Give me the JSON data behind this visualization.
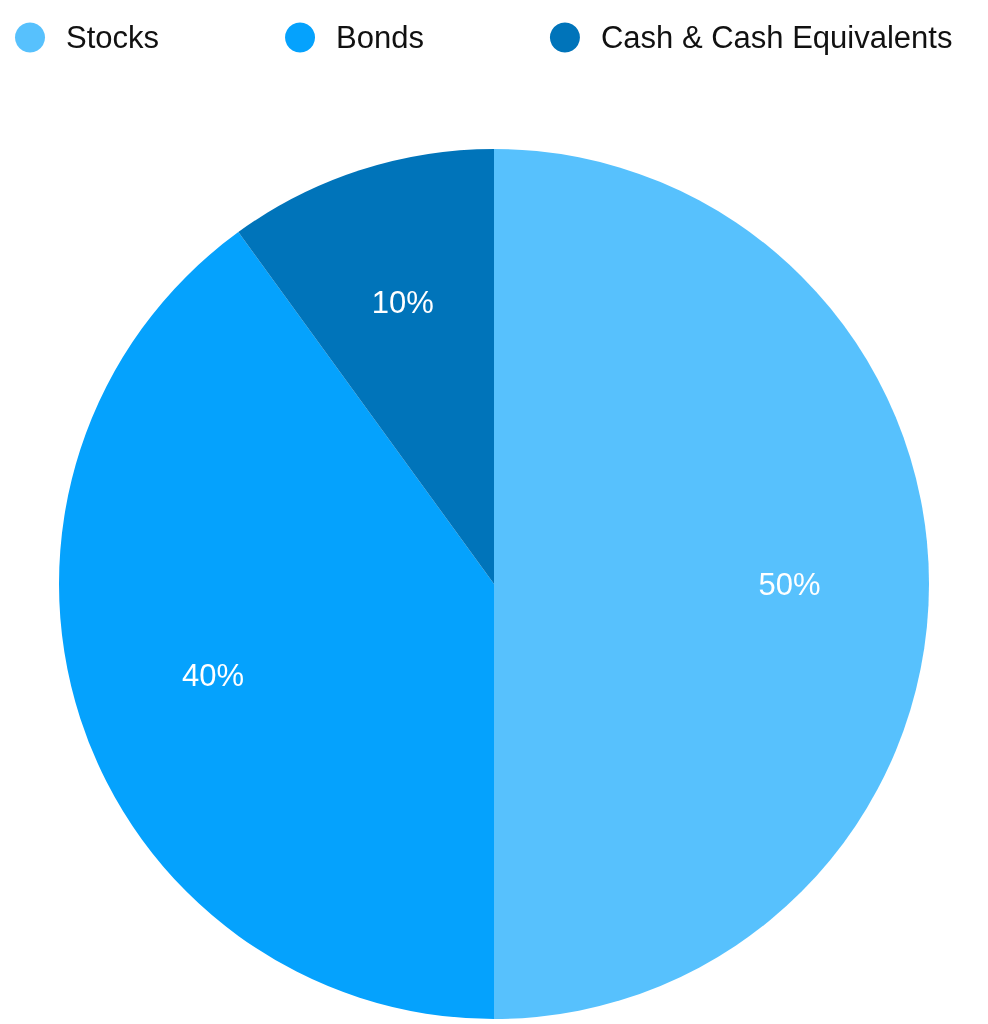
{
  "chart_data": {
    "type": "pie",
    "categories": [
      "Stocks",
      "Bonds",
      "Cash & Cash Equivalents"
    ],
    "values": [
      50,
      40,
      10
    ],
    "colors": [
      "#57c1fd",
      "#05a2fd",
      "#0074ba"
    ],
    "value_labels": [
      "50%",
      "40%",
      "10%"
    ],
    "legend": "top left"
  }
}
